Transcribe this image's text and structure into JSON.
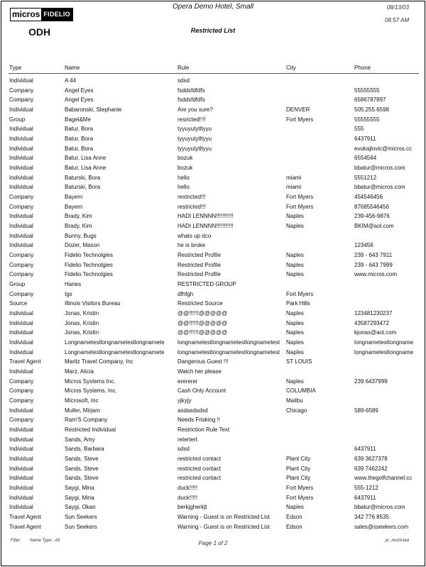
{
  "header": {
    "logo": {
      "left": "micros",
      "right": "FIDELIO"
    },
    "property_code": "ODH",
    "hotel_name": "Opera Demo Hotel, Small",
    "report_title": "Restricted List",
    "date": "08/13/03",
    "time": "08:57 AM"
  },
  "columns": [
    "Type",
    "Name",
    "Rule",
    "City",
    "Phone"
  ],
  "rows": [
    [
      "Individual",
      "A 44",
      "sdsd",
      "",
      ""
    ],
    [
      "Company",
      "Angel Eyes",
      "fsddsfdfdfs",
      "",
      "55555555"
    ],
    [
      "Company",
      "Angel Eyes",
      "fsddsfdfdfs",
      "",
      "6586787897"
    ],
    [
      "Individual",
      "Babaronski, Stephanie",
      "Are you sure?",
      "DENVER",
      "505.255.6598"
    ],
    [
      "Group",
      "Bagel&Me",
      "resricted!!!!",
      "Fort Myers",
      "55555555"
    ],
    [
      "Individual",
      "Batur, Bora",
      "tyyuyutytltyyu",
      "",
      "555"
    ],
    [
      "Individual",
      "Batur, Bora",
      "tyyuyutytltyyu",
      "",
      "6437911"
    ],
    [
      "Individual",
      "Batur, Bora",
      "tyyuyutytltyyu",
      "",
      "evukajlovic@micros.cc"
    ],
    [
      "Individual",
      "Batur, Lisa Anne",
      "bozuk",
      "",
      "6554564"
    ],
    [
      "Individual",
      "Batur, Lisa Anne",
      "bozuk",
      "",
      "bbatur@micros.com"
    ],
    [
      "Individual",
      "Baturski, Bora",
      "hello",
      "miami",
      "5551212"
    ],
    [
      "Individual",
      "Baturski, Bora",
      "hello",
      "miami",
      "bbatur@micros.com"
    ],
    [
      "Company",
      "Bayern",
      "restricted!!!",
      "Fort Myers",
      "454546456"
    ],
    [
      "Company",
      "Bayern",
      "restricted!!!",
      "Fort Myers",
      "87685546456"
    ],
    [
      "Individual",
      "Brady, Kim",
      "HADI LENNNN!!!!!!!!!!!",
      "Naples",
      "239-456-9876"
    ],
    [
      "Individual",
      "Brady, Kim",
      "HADI LENNNN!!!!!!!!!!!",
      "Naples",
      "BKIM@aol.com"
    ],
    [
      "Individual",
      "Bunny, Bugs",
      "whats up dco",
      "",
      ""
    ],
    [
      "Individual",
      "Dozer, Mason",
      "he is broke",
      "",
      "123456"
    ],
    [
      "Company",
      "Fidelio Technolgies",
      "Restricted Profile",
      "Naples",
      "239 - 643 7911"
    ],
    [
      "Company",
      "Fidelio Technolgies",
      "Restricted Profile",
      "Naples",
      "239 - 643 7999"
    ],
    [
      "Company",
      "Fidelio Technolgies",
      "Restricted Profile",
      "Naples",
      "www.micros.com"
    ],
    [
      "Group",
      "Hanes",
      "RESTRICTED GROUP",
      "",
      ""
    ],
    [
      "Company",
      "Igs",
      "dfhfgh",
      "Fort Myers",
      ""
    ],
    [
      "Source",
      "Illinois Visitors Bureau",
      "Restricted Source",
      "Park Hills",
      ""
    ],
    [
      "Individual",
      "Jonas, Kristin",
      "@@!!!!!!@@@@@",
      "Naples",
      "123481230237"
    ],
    [
      "Individual",
      "Jonas, Kristin",
      "@@!!!!!!@@@@@",
      "Naples",
      "43587293472"
    ],
    [
      "Individual",
      "Jonas, Kristin",
      "@@!!!!!!@@@@@",
      "Naples",
      "kjonas@aol.com"
    ],
    [
      "Individual",
      "Longnametestlongnametestlongnamete",
      "longnametestlongnametestlongnametest",
      "Naples",
      "longnametestlongname"
    ],
    [
      "Individual",
      "Longnametestlongnametestlongnamete",
      "longnametestlongnametestlongnametest",
      "Naples",
      "longnametestlongname"
    ],
    [
      "Travel Agent",
      "Maritz Travel Company, Inc",
      "Dangerous Guest !!!",
      "ST LOUIS",
      ""
    ],
    [
      "Individual",
      "Marz, Alicia",
      "Watch her please",
      "",
      ""
    ],
    [
      "Company",
      "Micros Systems Inc.",
      "erererer",
      "Naples",
      "239 6437999"
    ],
    [
      "Company",
      "Micros Systems, Inc.",
      "Cash Only Account",
      "COLUMBIA",
      ""
    ],
    [
      "Company",
      "Microsoft, Inc",
      "yjkyjy",
      "Malibu",
      ""
    ],
    [
      "Individual",
      "Muller, Mirjam",
      "asdasdsdsd",
      "Chicago",
      "589-6589"
    ],
    [
      "Company",
      "Ram'S Company",
      "Needs Frisking !!",
      "",
      ""
    ],
    [
      "Individual",
      "Restricted Individual",
      "Restriction Rule Text",
      "",
      ""
    ],
    [
      "Individual",
      "Sands, Amy",
      "retertert",
      "",
      ""
    ],
    [
      "Individual",
      "Sands, Barbara",
      "sdsd",
      "",
      "6437911"
    ],
    [
      "Individual",
      "Sands, Steve",
      "restricted contact",
      "Plant City",
      "639 3627378"
    ],
    [
      "Individual",
      "Sands, Steve",
      "restricted contact",
      "Plant City",
      "639 7462242"
    ],
    [
      "Individual",
      "Sands, Steve",
      "restricted contact",
      "Plant City",
      "www.thegolfchannel.cc"
    ],
    [
      "Individual",
      "Saygi, Mina",
      "duck!!!!!",
      "Fort Myers",
      "555-1212"
    ],
    [
      "Individual",
      "Saygi, Mina",
      "duck!!!!!",
      "Fort Myers",
      "6437911"
    ],
    [
      "Individual",
      "Saygi, Okan",
      "berkjgherkjt",
      "Naples",
      "bbatur@micros.com"
    ],
    [
      "Travel Agent",
      "Sun Seekers",
      "Warning - Guest is on Restricted List",
      "Edson",
      "342 776 8535"
    ],
    [
      "Travel Agent",
      "Sun Seekers",
      "Warning - Guest is on Restricted List",
      "Edson",
      "sales@sseekers.com"
    ]
  ],
  "footer": {
    "filter_label": "Filter",
    "filter_value": "Name Type : All",
    "page": "Page 1 of 2",
    "report_code": "pr_restricted"
  }
}
